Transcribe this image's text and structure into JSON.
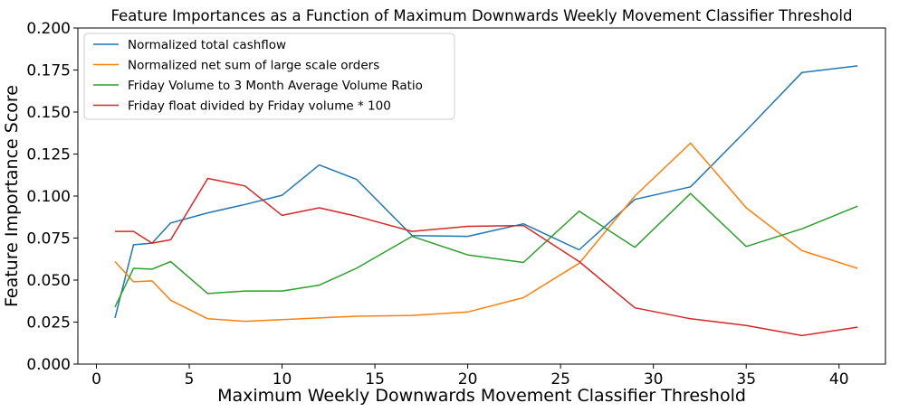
{
  "chart_data": {
    "type": "line",
    "title": "Feature Importances as a Function of Maximum Downwards Weekly Movement Classifier Threshold",
    "xlabel": "Maximum Weekly Downwards Movement Classifier Threshold",
    "ylabel": "Feature Importance Score",
    "xlim": [
      -1,
      42.5
    ],
    "ylim": [
      0,
      0.2
    ],
    "xticks": [
      0,
      5,
      10,
      15,
      20,
      25,
      30,
      35,
      40
    ],
    "xtick_labels": [
      "0",
      "5",
      "10",
      "15",
      "20",
      "25",
      "30",
      "35",
      "40"
    ],
    "yticks": [
      0,
      0.025,
      0.05,
      0.075,
      0.1,
      0.125,
      0.15,
      0.175,
      0.2
    ],
    "ytick_labels": [
      "0.000",
      "0.025",
      "0.050",
      "0.075",
      "0.100",
      "0.125",
      "0.150",
      "0.175",
      "0.200"
    ],
    "grid": false,
    "legend_position": "top-left",
    "x": [
      1,
      2,
      3,
      4,
      6,
      8,
      10,
      12,
      14,
      17,
      20,
      23,
      26,
      29,
      32,
      35,
      38,
      41
    ],
    "series": [
      {
        "name": "Normalized total cashflow",
        "color": "#1f77b4",
        "values": [
          0.0275,
          0.071,
          0.072,
          0.084,
          0.09,
          0.095,
          0.1005,
          0.1185,
          0.11,
          0.0765,
          0.076,
          0.0835,
          0.068,
          0.098,
          0.1055,
          0.139,
          0.1735,
          0.1775
        ]
      },
      {
        "name": "Normalized net sum of large scale orders",
        "color": "#ff7f0e",
        "values": [
          0.061,
          0.049,
          0.0495,
          0.038,
          0.027,
          0.0255,
          0.0265,
          0.0275,
          0.0285,
          0.029,
          0.031,
          0.0395,
          0.06,
          0.1,
          0.1315,
          0.093,
          0.0675,
          0.057
        ]
      },
      {
        "name": "Friday Volume to 3 Month Average Volume Ratio",
        "color": "#2ca02c",
        "values": [
          0.034,
          0.057,
          0.0565,
          0.061,
          0.042,
          0.0435,
          0.0435,
          0.047,
          0.057,
          0.076,
          0.065,
          0.0605,
          0.091,
          0.0695,
          0.1015,
          0.07,
          0.0805,
          0.094
        ]
      },
      {
        "name": "Friday float divided by Friday volume * 100",
        "color": "#d62728",
        "values": [
          0.079,
          0.079,
          0.072,
          0.074,
          0.1105,
          0.106,
          0.0885,
          0.093,
          0.088,
          0.079,
          0.082,
          0.0825,
          0.061,
          0.0335,
          0.027,
          0.023,
          0.017,
          0.022
        ]
      }
    ]
  }
}
